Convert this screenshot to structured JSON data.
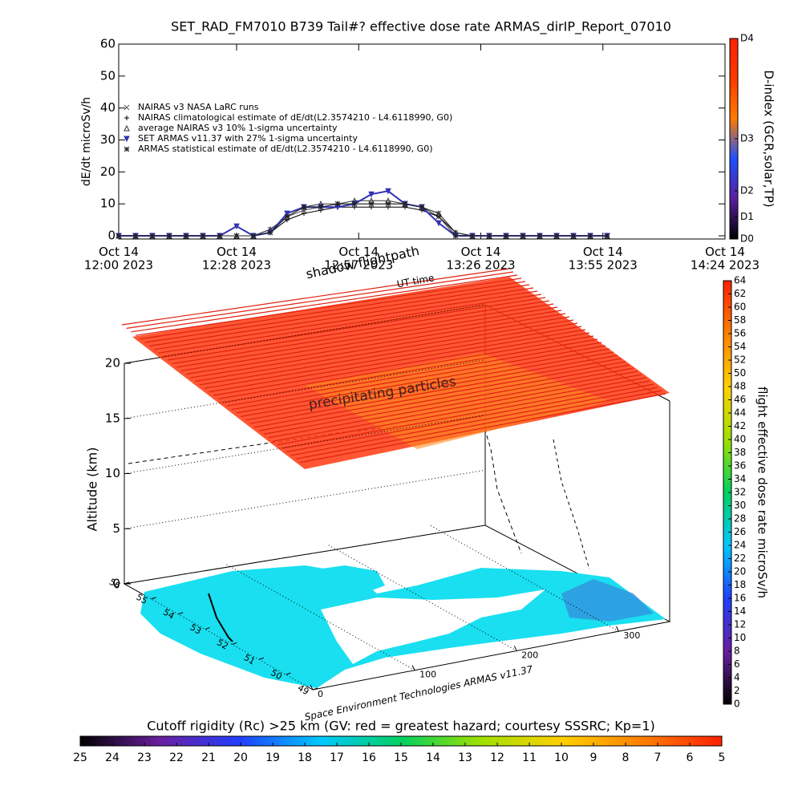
{
  "chart_data": [
    {
      "type": "line",
      "title": "SET_RAD_FM7010  B739 Tail#? effective dose rate ARMAS_dirIP_Report_07010",
      "ylabel": "dE/dt microSv/h",
      "x": [
        "2023-10-14T12:00",
        "2023-10-14T12:04",
        "2023-10-14T12:08",
        "2023-10-14T12:12",
        "2023-10-14T12:16",
        "2023-10-14T12:20",
        "2023-10-14T12:24",
        "2023-10-14T12:28",
        "2023-10-14T12:32",
        "2023-10-14T12:36",
        "2023-10-14T12:40",
        "2023-10-14T12:44",
        "2023-10-14T12:48",
        "2023-10-14T12:52",
        "2023-10-14T12:56",
        "2023-10-14T13:00",
        "2023-10-14T13:04",
        "2023-10-14T13:08",
        "2023-10-14T13:12",
        "2023-10-14T13:16",
        "2023-10-14T13:20",
        "2023-10-14T13:24",
        "2023-10-14T13:28",
        "2023-10-14T13:32",
        "2023-10-14T13:36",
        "2023-10-14T13:40",
        "2023-10-14T13:44",
        "2023-10-14T13:48",
        "2023-10-14T13:52",
        "2023-10-14T13:56"
      ],
      "series": [
        {
          "name": "NAIRAS v3 NASA LaRC runs",
          "color": "#555555",
          "marker": "x",
          "values": [
            0,
            0,
            0,
            0,
            0,
            0,
            0,
            0,
            0,
            2,
            6,
            8,
            9,
            10,
            10,
            10,
            10,
            10,
            9,
            7,
            1,
            0,
            0,
            0,
            0,
            0,
            0,
            0,
            0,
            0
          ]
        },
        {
          "name": "NAIRAS climatological estimate of dE/dt(L2.3574210 - L4.6118990, G0)",
          "color": "#000000",
          "marker": "plus",
          "values": [
            0,
            0,
            0,
            0,
            0,
            0,
            0,
            0,
            0,
            1,
            5,
            7,
            8,
            9,
            9,
            9,
            9,
            9,
            8,
            6,
            1,
            0,
            0,
            0,
            0,
            0,
            0,
            0,
            0,
            0
          ]
        },
        {
          "name": "average NAIRAS v3 10% 1-sigma uncertainty",
          "color": "#333333",
          "marker": "triangle",
          "values": [
            0,
            0,
            0,
            0,
            0,
            0,
            0,
            0,
            0,
            2,
            6,
            9,
            10,
            10,
            11,
            11,
            11,
            10,
            9,
            7,
            1,
            0,
            0,
            0,
            0,
            0,
            0,
            0,
            0,
            0
          ]
        },
        {
          "name": "SET ARMAS v11.37 with 27% 1-sigma uncertainty",
          "color": "#3232b4",
          "marker": "tri-down",
          "values": [
            0,
            0,
            0,
            0,
            0,
            0,
            0,
            3,
            0,
            1,
            7,
            9,
            9,
            9,
            10,
            13,
            14,
            10,
            9,
            4,
            0,
            0,
            0,
            0,
            0,
            0,
            0,
            0,
            0,
            0
          ]
        },
        {
          "name": "ARMAS statistical estimate of dE/dt(L2.3574210 - L4.6118990, G0)",
          "color": "#222222",
          "marker": "star",
          "values": [
            0,
            0,
            0,
            0,
            0,
            0,
            0,
            0,
            0,
            1,
            6,
            9,
            9,
            10,
            10,
            10,
            10,
            10,
            9,
            6,
            0,
            0,
            0,
            0,
            0,
            0,
            0,
            0,
            0,
            0
          ]
        }
      ],
      "xlim": [
        "2023-10-14T12:00",
        "2023-10-14T14:24"
      ],
      "xticks": [
        {
          "value": "2023-10-14T12:00",
          "label": "Oct 14\n12:00 2023"
        },
        {
          "value": "2023-10-14T12:28",
          "label": "Oct 14\n12:28 2023"
        },
        {
          "value": "2023-10-14T12:57",
          "label": "Oct 14\n12:57 2023"
        },
        {
          "value": "2023-10-14T13:26",
          "label": "Oct 14\n13:26 2023"
        },
        {
          "value": "2023-10-14T13:55",
          "label": "Oct 14\n13:55 2023"
        },
        {
          "value": "2023-10-14T14:24",
          "label": "Oct 14\n14:24 2023"
        }
      ],
      "ylim": [
        -1,
        60
      ],
      "yticks": [
        0,
        10,
        20,
        30,
        40,
        50,
        60
      ]
    },
    {
      "type": "colorbar",
      "orientation": "vertical",
      "label": "D-index (GCR,solar,TP)",
      "lim": [
        0,
        1
      ],
      "ticks": [
        {
          "value": 0,
          "label": "D0"
        },
        {
          "value": 0.11,
          "label": "D1"
        },
        {
          "value": 0.24,
          "label": "D2"
        },
        {
          "value": 0.5,
          "label": "D3"
        },
        {
          "value": 1,
          "label": "D4"
        }
      ],
      "colors": [
        "#000000",
        "#5a1f9e",
        "#1e50ff",
        "#ff7a00",
        "#ff3a00",
        "#ff2000"
      ]
    },
    {
      "type": "surface3d",
      "ylabel": "Altitude (km)",
      "ylim": [
        0,
        20
      ],
      "yticks": [
        0,
        5,
        10,
        15,
        20
      ],
      "xlim": [
        0,
        350
      ],
      "xticks": [
        0,
        100,
        200,
        300
      ],
      "latlim": [
        56,
        49
      ],
      "latticks": [
        56,
        55,
        54,
        53,
        52,
        51,
        50,
        49
      ],
      "annotations": [
        "precipitating particles",
        "shadow flightpath",
        "UT time"
      ],
      "credit": "Space Environment Technologies ARMAS v11.37"
    },
    {
      "type": "colorbar",
      "orientation": "vertical",
      "label": "flight effective dose rate microSv/h",
      "lim": [
        0,
        64
      ],
      "ticks": [
        0,
        2,
        4,
        6,
        8,
        10,
        12,
        14,
        16,
        18,
        20,
        22,
        24,
        26,
        28,
        30,
        32,
        34,
        36,
        38,
        40,
        42,
        44,
        46,
        48,
        50,
        52,
        54,
        56,
        58,
        60,
        62,
        64
      ],
      "colors": [
        "#000000",
        "#6a1fa0",
        "#2040ff",
        "#00c8ff",
        "#00d060",
        "#a0e000",
        "#ffd000",
        "#ff8000",
        "#ff2000"
      ]
    },
    {
      "type": "colorbar",
      "orientation": "horizontal",
      "label": "Cutoff rigidity (Rc) >25 km (GV: red = greatest hazard; courtesy SSSRC; Kp=1)",
      "lim": [
        25,
        5
      ],
      "ticks": [
        25,
        24,
        23,
        22,
        21,
        20,
        19,
        18,
        17,
        16,
        15,
        14,
        13,
        12,
        11,
        10,
        9,
        8,
        7,
        6,
        5
      ],
      "colors": [
        "#000000",
        "#6a1fa0",
        "#2040ff",
        "#00c8ff",
        "#00d060",
        "#a0e000",
        "#ffd000",
        "#ff8000",
        "#ff2000"
      ]
    }
  ]
}
